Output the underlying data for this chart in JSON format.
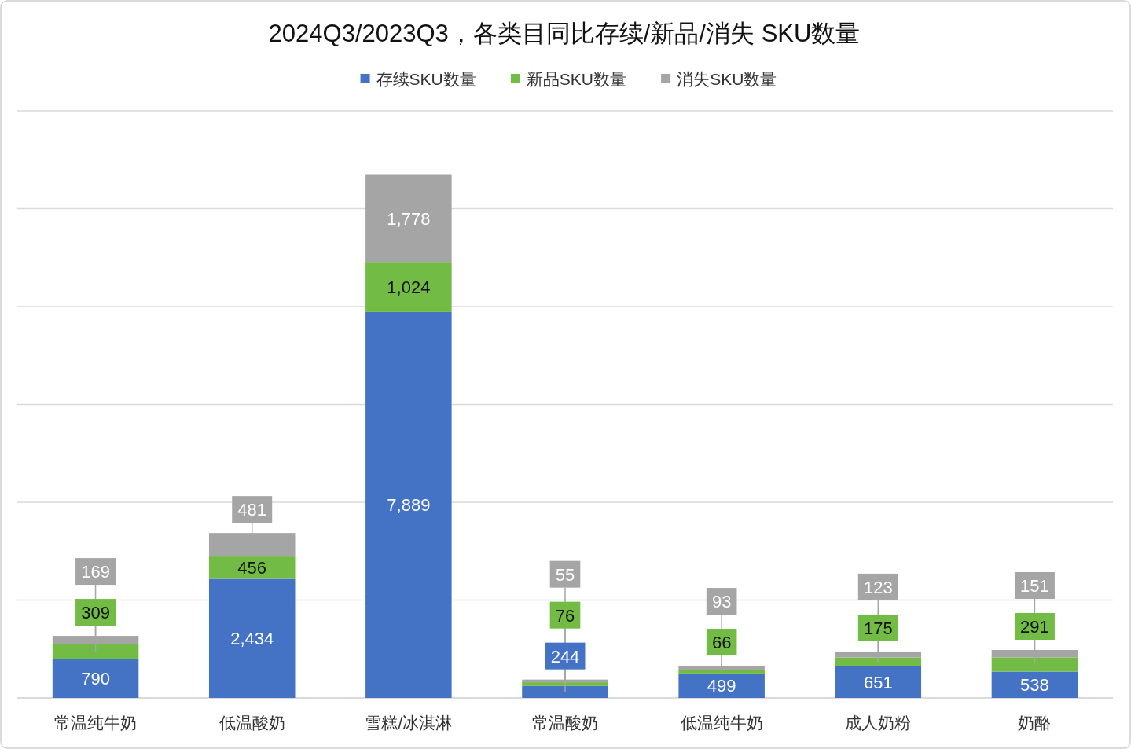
{
  "chart_data": {
    "type": "bar",
    "title": "2024Q3/2023Q3，各类目同比存续/新品/消失 SKU数量",
    "categories": [
      "常温纯牛奶",
      "低温酸奶",
      "雪糕/冰淇淋",
      "常温酸奶",
      "低温纯牛奶",
      "成人奶粉",
      "奶酪"
    ],
    "series": [
      {
        "name": "存续SKU数量",
        "color": "#4472c4",
        "values": [
          790,
          2434,
          7889,
          244,
          499,
          651,
          538
        ],
        "value_labels": [
          "790",
          "2,434",
          "7,889",
          "244",
          "499",
          "651",
          "538"
        ]
      },
      {
        "name": "新品SKU数量",
        "color": "#72bb45",
        "values": [
          309,
          456,
          1024,
          76,
          66,
          175,
          291
        ],
        "value_labels": [
          "309",
          "456",
          "1,024",
          "76",
          "66",
          "175",
          "291"
        ]
      },
      {
        "name": "消失SKU数量",
        "color": "#a5a5a5",
        "values": [
          169,
          481,
          1778,
          55,
          93,
          123,
          151
        ],
        "value_labels": [
          "169",
          "481",
          "1,778",
          "55",
          "93",
          "123",
          "151"
        ]
      }
    ],
    "stacked": true,
    "ylim": [
      0,
      12000
    ],
    "yticks": [
      {
        "value": 0,
        "label": null
      },
      {
        "value": 2000,
        "label": null
      },
      {
        "value": 4000,
        "label": null
      },
      {
        "value": 6000,
        "label": null
      },
      {
        "value": 8000,
        "label": null
      },
      {
        "value": 10000,
        "label": null
      },
      {
        "value": 12000,
        "label": null
      }
    ],
    "grid": "y",
    "legend": "top",
    "tick_labels": "x"
  }
}
